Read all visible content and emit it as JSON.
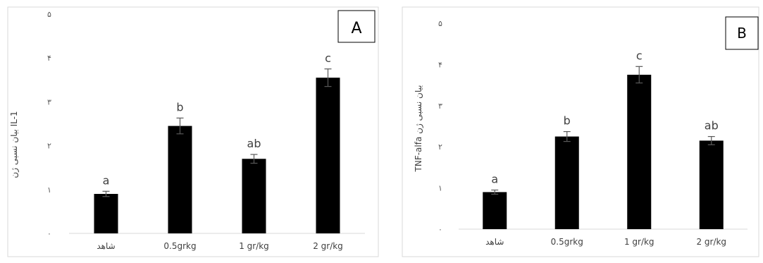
{
  "chart_data": [
    {
      "type": "bar",
      "panel_label": "A",
      "ylabel": "بیان نسبی ژن IL-1",
      "ylim": [
        0,
        5
      ],
      "yticks": [
        "۰",
        "۱",
        "۲",
        "۳",
        "۴",
        "۵"
      ],
      "categories": [
        "شاهد",
        "0.5grkg",
        "1 gr/kg",
        "2 gr/kg"
      ],
      "values": [
        0.9,
        2.45,
        1.7,
        3.55
      ],
      "errors": [
        0.06,
        0.18,
        0.1,
        0.2
      ],
      "sig_labels": [
        "a",
        "b",
        "ab",
        "c"
      ],
      "grid": false,
      "bar_color": "#000000"
    },
    {
      "type": "bar",
      "panel_label": "B",
      "ylabel": "TNF-alfa بیان نسبی ژن",
      "ylim": [
        0,
        5
      ],
      "yticks": [
        "۰",
        "۱",
        "۲",
        "۳",
        "۴",
        "۵"
      ],
      "categories": [
        "شاهد",
        "0.5grkg",
        "1 gr/kg",
        "2 gr/kg"
      ],
      "values": [
        0.9,
        2.25,
        3.75,
        2.15
      ],
      "errors": [
        0.05,
        0.12,
        0.2,
        0.1
      ],
      "sig_labels": [
        "a",
        "b",
        "c",
        "ab"
      ],
      "grid": false,
      "bar_color": "#000000"
    }
  ]
}
